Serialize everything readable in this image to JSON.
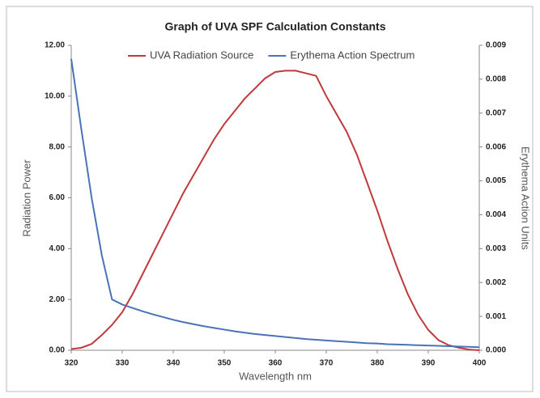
{
  "chart_data": {
    "type": "line",
    "title": "Graph of UVA SPF Calculation Constants",
    "x_label": "Wavelength nm",
    "y_label": "Radiation Power",
    "y2_label": "Erythema Action Units",
    "x": [
      320,
      322,
      324,
      326,
      328,
      330,
      332,
      334,
      336,
      338,
      340,
      342,
      344,
      346,
      348,
      350,
      352,
      354,
      356,
      358,
      360,
      362,
      364,
      366,
      368,
      370,
      372,
      374,
      376,
      378,
      380,
      382,
      384,
      386,
      388,
      390,
      392,
      394,
      396,
      398,
      400
    ],
    "xlim": [
      320,
      400
    ],
    "xticks": [
      320,
      330,
      340,
      350,
      360,
      370,
      380,
      390,
      400
    ],
    "ylim": [
      0,
      12
    ],
    "yticks": [
      {
        "value": 0,
        "label": "0.00"
      },
      {
        "value": 2,
        "label": "2.00"
      },
      {
        "value": 4,
        "label": "4.00"
      },
      {
        "value": 6,
        "label": "6.00"
      },
      {
        "value": 8,
        "label": "8.00"
      },
      {
        "value": 10,
        "label": "10.00"
      },
      {
        "value": 12,
        "label": "12.00"
      }
    ],
    "y2lim": [
      0,
      0.009
    ],
    "y2ticks": [
      {
        "value": 0,
        "label": "0.000"
      },
      {
        "value": 0.001,
        "label": "0.001"
      },
      {
        "value": 0.002,
        "label": "0.002"
      },
      {
        "value": 0.003,
        "label": "0.003"
      },
      {
        "value": 0.004,
        "label": "0.004"
      },
      {
        "value": 0.005,
        "label": "0.005"
      },
      {
        "value": 0.006,
        "label": "0.006"
      },
      {
        "value": 0.007,
        "label": "0.007"
      },
      {
        "value": 0.008,
        "label": "0.008"
      },
      {
        "value": 0.009,
        "label": "0.009"
      }
    ],
    "grid": false,
    "legend_position": "top",
    "series": [
      {
        "name": "UVA Radiation Source",
        "color": "#c0393b",
        "values": [
          0.05,
          0.1,
          0.25,
          0.6,
          1.0,
          1.5,
          2.2,
          3.0,
          3.8,
          4.6,
          5.4,
          6.2,
          6.9,
          7.6,
          8.3,
          8.9,
          9.4,
          9.9,
          10.3,
          10.7,
          10.95,
          11.0,
          11.0,
          10.9,
          10.8,
          10.0,
          9.3,
          8.6,
          7.7,
          6.6,
          5.5,
          4.3,
          3.2,
          2.2,
          1.4,
          0.8,
          0.4,
          0.2,
          0.1,
          0.03,
          0.0
        ]
      },
      {
        "name": "Erythema Action Spectrum",
        "color": "#4a72b8",
        "axis": "y2",
        "values": [
          0.0086,
          0.0065,
          0.0045,
          0.0028,
          0.0015,
          0.00135,
          0.00125,
          0.00115,
          0.00106,
          0.00098,
          0.0009,
          0.00083,
          0.00077,
          0.00071,
          0.00066,
          0.00061,
          0.00056,
          0.00052,
          0.00048,
          0.00045,
          0.00042,
          0.00039,
          0.00036,
          0.00033,
          0.00031,
          0.00029,
          0.00027,
          0.00025,
          0.00023,
          0.00021,
          0.0002,
          0.00018,
          0.00017,
          0.00016,
          0.00015,
          0.00014,
          0.00013,
          0.00012,
          0.00011,
          0.0001,
          9e-05
        ]
      }
    ]
  }
}
